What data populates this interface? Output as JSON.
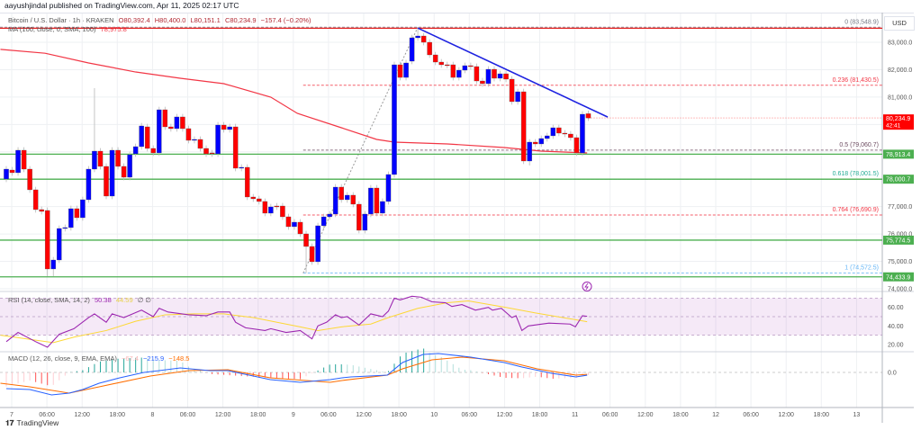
{
  "header": {
    "published": "aayushjindal published on TradingView.com, Apr 11, 2025 02:17 UTC"
  },
  "legend": {
    "symbol": "Bitcoin / U.S. Dollar · 1h · KRAKEN",
    "open": "O80,392.4",
    "high": "H80,400.0",
    "low": "L80,151.1",
    "close": "C80,234.9",
    "change": "−157.4 (−0.20%)",
    "ma_label": "MA (100, close, 0, SMA, 100)",
    "ma_value": "78,975.8",
    "rsi_label": "RSI (14, close, SMA, 14, 2)",
    "rsi_value": "50.38",
    "rsi_sma_value": "44.59",
    "rsi_extra": "∅ ∅",
    "macd_label": "MACD (12, 26, close, 9, EMA, EMA)",
    "macd_hist": "−67.4",
    "macd_value": "−215.9",
    "macd_signal": "−148.5"
  },
  "currency": "USD",
  "branding": {
    "logo_mark": "17",
    "name": "TradingView"
  },
  "colors": {
    "up": "#0000ff",
    "down": "#ff0000",
    "ma": "#f23645",
    "rsi": "#9c27b0",
    "rsi_sma": "#fdd835",
    "macd": "#2962ff",
    "signal": "#ff6d00",
    "support": "#4caf50",
    "trend": "#1e22e0"
  },
  "chart_data": {
    "type": "candlestick",
    "timeframe": "1h",
    "ylim": [
      73800,
      84100
    ],
    "price_ticks": [
      "83,000.0",
      "82,000.0",
      "81,000.0",
      "77,000.0",
      "76,000.0",
      "75,000.0",
      "74,000.0"
    ],
    "price_tick_values": [
      83000,
      82000,
      81000,
      77000,
      76000,
      75000,
      74000
    ],
    "time_labels": [
      "7",
      "06:00",
      "12:00",
      "18:00",
      "8",
      "06:00",
      "12:00",
      "18:00",
      "9",
      "06:00",
      "12:00",
      "18:00",
      "10",
      "06:00",
      "12:00",
      "18:00",
      "11",
      "06:00",
      "12:00",
      "18:00",
      "12",
      "06:00",
      "12:00",
      "18:00",
      "13"
    ],
    "candles_oc": [
      [
        78007,
        78368
      ],
      [
        78335,
        78237
      ],
      [
        78237,
        79058
      ],
      [
        79058,
        78368
      ],
      [
        78368,
        77613
      ],
      [
        77613,
        76890
      ],
      [
        76890,
        76824
      ],
      [
        76857,
        74722
      ],
      [
        74722,
        75050
      ],
      [
        75050,
        76200
      ],
      [
        76200,
        76233
      ],
      [
        76233,
        76923
      ],
      [
        76923,
        76594
      ],
      [
        76594,
        77251
      ],
      [
        77251,
        78368
      ],
      [
        78368,
        79025
      ],
      [
        79025,
        78467
      ],
      [
        78467,
        77383
      ],
      [
        77383,
        79058
      ],
      [
        79058,
        78467
      ],
      [
        78467,
        78072
      ],
      [
        78072,
        78894
      ],
      [
        78927,
        79189
      ],
      [
        79189,
        79945
      ],
      [
        79912,
        79124
      ],
      [
        79124,
        78960
      ],
      [
        78960,
        80536
      ],
      [
        80536,
        79912
      ],
      [
        79912,
        79847
      ],
      [
        79847,
        80274
      ],
      [
        80274,
        79847
      ],
      [
        79847,
        79419
      ],
      [
        79419,
        79452
      ],
      [
        79452,
        79124
      ],
      [
        79124,
        78927
      ],
      [
        78960,
        78927
      ],
      [
        78927,
        79978
      ],
      [
        79978,
        79814
      ],
      [
        79814,
        79912
      ],
      [
        79912,
        78401
      ],
      [
        78401,
        78434
      ],
      [
        78434,
        77350
      ],
      [
        77350,
        77284
      ],
      [
        77284,
        77186
      ],
      [
        77186,
        76759
      ],
      [
        76759,
        76989
      ],
      [
        77021,
        76989
      ],
      [
        77021,
        76627
      ],
      [
        76627,
        76266
      ],
      [
        76266,
        76430
      ],
      [
        76430,
        76003
      ],
      [
        76003,
        75543
      ],
      [
        75543,
        74985
      ],
      [
        74985,
        76299
      ],
      [
        76299,
        76627
      ],
      [
        76627,
        76726
      ],
      [
        76726,
        77711
      ],
      [
        77711,
        77251
      ],
      [
        77251,
        77416
      ],
      [
        77416,
        77087
      ],
      [
        77087,
        76134
      ],
      [
        76134,
        76726
      ],
      [
        76726,
        77678
      ],
      [
        77678,
        76759
      ],
      [
        76759,
        77186
      ],
      [
        77186,
        78171
      ],
      [
        78171,
        82179
      ],
      [
        82179,
        81717
      ],
      [
        81717,
        82245
      ],
      [
        82310,
        83164
      ],
      [
        83164,
        83230
      ],
      [
        83230,
        83000
      ],
      [
        83000,
        82540
      ],
      [
        82540,
        82277
      ],
      [
        82277,
        82179
      ],
      [
        82179,
        82160
      ],
      [
        82179,
        81717
      ],
      [
        81717,
        81981
      ],
      [
        81981,
        82146
      ],
      [
        82146,
        82113
      ],
      [
        82113,
        81587
      ],
      [
        81587,
        81489
      ],
      [
        81489,
        82014
      ],
      [
        82014,
        81686
      ],
      [
        81686,
        81850
      ],
      [
        81850,
        81653
      ],
      [
        81653,
        80832
      ],
      [
        80832,
        81193
      ],
      [
        81193,
        78664
      ],
      [
        78664,
        79354
      ],
      [
        79354,
        79288
      ],
      [
        79288,
        79485
      ],
      [
        79485,
        79584
      ],
      [
        79584,
        79879
      ],
      [
        79879,
        79682
      ],
      [
        79682,
        79649
      ],
      [
        79649,
        79518
      ],
      [
        79518,
        78960
      ],
      [
        78960,
        80372
      ],
      [
        80392,
        80235
      ]
    ],
    "wick_overrides": {
      "7": {
        "l": 74459
      },
      "8": {
        "l": 74459
      },
      "15": {
        "h": 81325
      },
      "51": {
        "l": 74572
      },
      "70": {
        "h": 83548
      },
      "89": {
        "l": 78500
      }
    },
    "ma100": [
      [
        -1,
        82741
      ],
      [
        6.6,
        82600
      ],
      [
        14,
        82245
      ],
      [
        22,
        81915
      ],
      [
        29.6,
        81686
      ],
      [
        37,
        81489
      ],
      [
        45,
        80996
      ],
      [
        49.5,
        80405
      ],
      [
        57,
        79879
      ],
      [
        63,
        79452
      ],
      [
        66,
        79354
      ],
      [
        75,
        79288
      ],
      [
        84.7,
        79157
      ],
      [
        91,
        79025
      ],
      [
        98.8,
        78960
      ]
    ],
    "fib_levels": [
      {
        "ratio": "0",
        "price": 83548.9,
        "label": "0 (83,548.9)",
        "color": "#787b86"
      },
      {
        "ratio": "0.236",
        "price": 81430.5,
        "label": "0.236 (81,430.5)",
        "color": "#f23645"
      },
      {
        "ratio": "0.5",
        "price": 79060.7,
        "label": "0.5 (79,060.7)",
        "color": "#6d4c61"
      },
      {
        "ratio": "0.618",
        "price": 78001.5,
        "label": "0.618 (78,001.5)",
        "color": "#22ab94"
      },
      {
        "ratio": "0.764",
        "price": 76690.9,
        "label": "0.764 (76,690.9)",
        "color": "#f23645"
      },
      {
        "ratio": "1",
        "price": 74572.5,
        "label": "1 (74,572.5)",
        "color": "#64b5f6"
      }
    ],
    "fib_anchor": {
      "from_index": 50.5,
      "from_price": 74572.5,
      "to_index": 70,
      "to_price": 83548.9
    },
    "support_lines": [
      {
        "price": 78913.4,
        "label": "78,913.4"
      },
      {
        "price": 78000.7,
        "label": "78,000.7"
      },
      {
        "price": 75774.5,
        "label": "75,774.5"
      },
      {
        "price": 74433.9,
        "label": "74,433.9"
      }
    ],
    "trendline": {
      "from_index": 70,
      "from_price": 83520,
      "to_index": 102.3,
      "to_price": 80270
    },
    "current_price": {
      "label": "80,234.9",
      "countdown": "42:41",
      "price": 80234.9
    },
    "rsi": {
      "range": [
        10,
        80
      ],
      "ticks": [
        "60.00",
        "40.00",
        "20.00"
      ],
      "tick_values": [
        60,
        40,
        20
      ],
      "band": [
        30,
        70
      ],
      "values": [
        [
          0,
          23
        ],
        [
          2,
          33
        ],
        [
          5,
          23
        ],
        [
          7,
          17
        ],
        [
          9,
          31
        ],
        [
          11.5,
          37
        ],
        [
          14,
          49
        ],
        [
          15,
          53
        ],
        [
          17,
          44
        ],
        [
          18,
          53
        ],
        [
          20,
          49
        ],
        [
          21.5,
          53
        ],
        [
          23,
          57
        ],
        [
          25,
          50
        ],
        [
          26,
          59
        ],
        [
          27.5,
          55
        ],
        [
          31,
          52
        ],
        [
          34,
          51
        ],
        [
          36,
          55
        ],
        [
          38,
          55
        ],
        [
          39,
          44
        ],
        [
          40.7,
          38
        ],
        [
          44,
          35
        ],
        [
          45,
          37
        ],
        [
          47.6,
          33
        ],
        [
          50,
          35
        ],
        [
          52,
          26
        ],
        [
          53,
          40
        ],
        [
          54.5,
          44
        ],
        [
          56,
          52
        ],
        [
          57,
          49
        ],
        [
          58,
          50
        ],
        [
          60,
          41
        ],
        [
          62,
          53
        ],
        [
          64,
          50
        ],
        [
          65,
          56
        ],
        [
          66,
          70
        ],
        [
          67,
          68
        ],
        [
          69,
          72
        ],
        [
          70.6,
          71
        ],
        [
          72.4,
          66
        ],
        [
          74.7,
          65
        ],
        [
          75.8,
          61
        ],
        [
          77.5,
          63
        ],
        [
          79.8,
          57
        ],
        [
          82,
          60
        ],
        [
          82.7,
          57
        ],
        [
          84.2,
          59
        ],
        [
          86,
          49
        ],
        [
          86.7,
          51
        ],
        [
          87.7,
          35
        ],
        [
          88.8,
          40
        ],
        [
          92.3,
          43
        ],
        [
          95.9,
          42
        ],
        [
          96.8,
          39
        ],
        [
          98,
          51
        ],
        [
          98.8,
          50.38
        ]
      ],
      "sma": [
        [
          -1,
          30
        ],
        [
          8,
          22
        ],
        [
          11.6,
          28
        ],
        [
          17,
          35
        ],
        [
          22,
          45
        ],
        [
          27,
          52
        ],
        [
          32,
          53
        ],
        [
          37,
          53
        ],
        [
          42,
          49
        ],
        [
          50,
          39
        ],
        [
          53,
          35
        ],
        [
          57,
          39
        ],
        [
          62,
          42
        ],
        [
          65,
          49
        ],
        [
          70,
          59
        ],
        [
          75,
          65
        ],
        [
          78.6,
          67
        ],
        [
          85,
          60
        ],
        [
          90,
          54
        ],
        [
          98.8,
          44.59
        ]
      ]
    },
    "macd": {
      "zero_label": "0.0",
      "macd": [
        [
          0,
          -1260
        ],
        [
          4,
          -1330
        ],
        [
          7.7,
          -1750
        ],
        [
          10.7,
          -1610
        ],
        [
          13,
          -1330
        ],
        [
          15.8,
          -840
        ],
        [
          19.3,
          -420
        ],
        [
          23.4,
          0
        ],
        [
          26,
          140
        ],
        [
          29.6,
          350
        ],
        [
          34.6,
          140
        ],
        [
          37.7,
          140
        ],
        [
          41.3,
          -210
        ],
        [
          44.9,
          -560
        ],
        [
          50,
          -770
        ],
        [
          55.1,
          -560
        ],
        [
          57.1,
          -420
        ],
        [
          58.6,
          -350
        ],
        [
          64.8,
          -210
        ],
        [
          67.4,
          770
        ],
        [
          70.9,
          1400
        ],
        [
          73.5,
          1470
        ],
        [
          79,
          1190
        ],
        [
          84.7,
          770
        ],
        [
          87.7,
          420
        ],
        [
          92.8,
          -70
        ],
        [
          96.9,
          -350
        ],
        [
          98.8,
          -215.9
        ]
      ],
      "signal": [
        [
          -1,
          -840
        ],
        [
          4,
          -1120
        ],
        [
          10.7,
          -1610
        ],
        [
          15.8,
          -1120
        ],
        [
          24.5,
          -280
        ],
        [
          31,
          140
        ],
        [
          37.7,
          210
        ],
        [
          44.9,
          -420
        ],
        [
          55.1,
          -770
        ],
        [
          57.1,
          -630
        ],
        [
          64.8,
          -210
        ],
        [
          67.4,
          280
        ],
        [
          72.4,
          980
        ],
        [
          77.5,
          1190
        ],
        [
          84.7,
          910
        ],
        [
          90.3,
          280
        ],
        [
          96.9,
          -210
        ],
        [
          98.8,
          -148.5
        ]
      ]
    }
  }
}
